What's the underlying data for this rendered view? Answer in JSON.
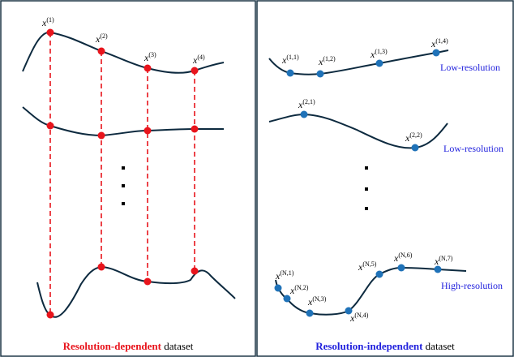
{
  "left": {
    "labels": [
      {
        "base": "x",
        "sup": "(1)"
      },
      {
        "base": "x",
        "sup": "(2)"
      },
      {
        "base": "x",
        "sup": "(3)"
      },
      {
        "base": "x",
        "sup": "(4)"
      }
    ],
    "caption": {
      "emphasis": "Resolution-dependent",
      "rest": "dataset"
    }
  },
  "right": {
    "labels": [
      {
        "base": "x",
        "sup": "(1,1)"
      },
      {
        "base": "x",
        "sup": "(1,2)"
      },
      {
        "base": "x",
        "sup": "(1,3)"
      },
      {
        "base": "x",
        "sup": "(1,4)"
      },
      {
        "base": "x",
        "sup": "(2,1)"
      },
      {
        "base": "x",
        "sup": "(2,2)"
      },
      {
        "base": "x",
        "sup": "(N,1)"
      },
      {
        "base": "x",
        "sup": "(N,2)"
      },
      {
        "base": "x",
        "sup": "(N,3)"
      },
      {
        "base": "x",
        "sup": "(N,4)"
      },
      {
        "base": "x",
        "sup": "(N,5)"
      },
      {
        "base": "x",
        "sup": "(N,6)"
      },
      {
        "base": "x",
        "sup": "(N,7)"
      }
    ],
    "tags": [
      "Low-resolution",
      "Low-resolution",
      "High-resolution"
    ],
    "caption": {
      "emphasis": "Resolution-independent",
      "rest": "dataset"
    }
  }
}
